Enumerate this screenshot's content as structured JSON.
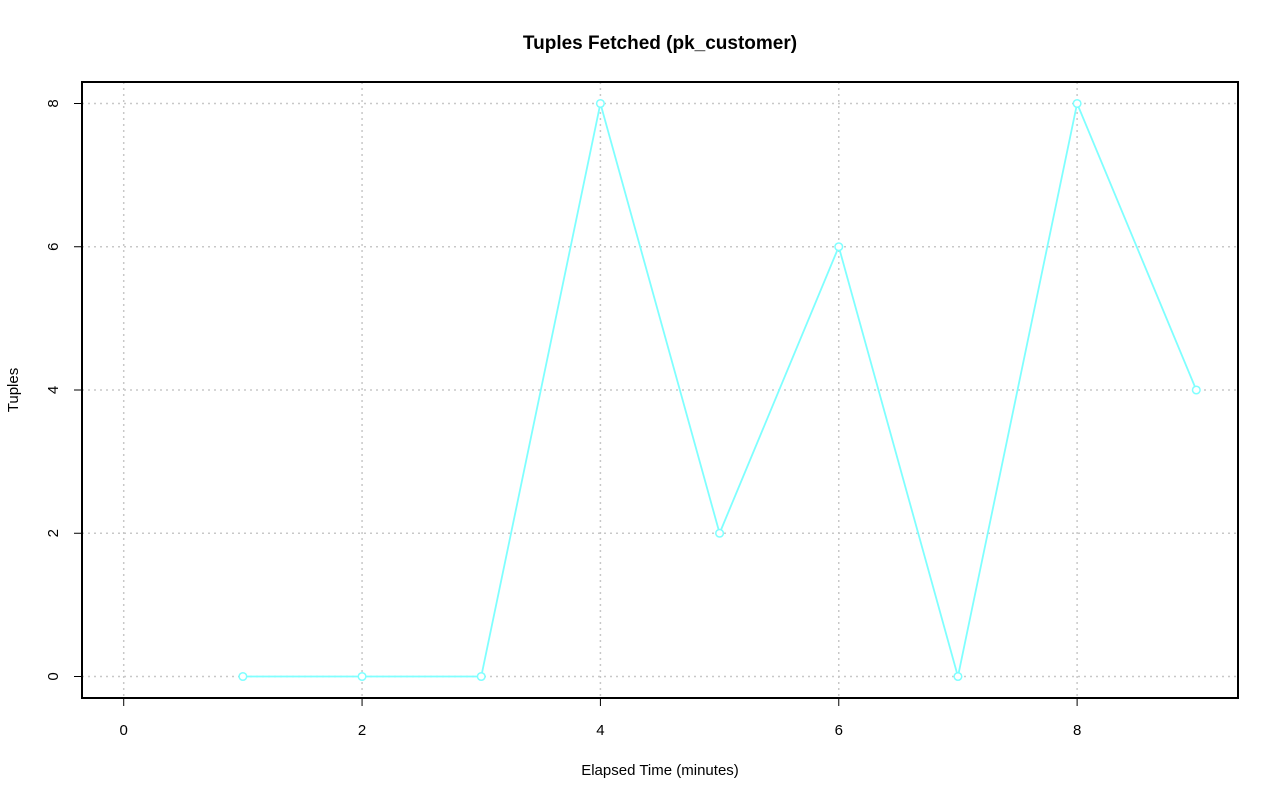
{
  "chart_data": {
    "type": "line",
    "title": "Tuples Fetched (pk_customer)",
    "xlabel": "Elapsed Time (minutes)",
    "ylabel": "Tuples",
    "xlim": [
      -0.35,
      9.35
    ],
    "ylim": [
      -0.3,
      8.3
    ],
    "xticks": [
      0,
      2,
      4,
      6,
      8
    ],
    "yticks": [
      0,
      2,
      4,
      6,
      8
    ],
    "grid": true,
    "series": [
      {
        "color": "#7fffff",
        "marker": "circle",
        "x": [
          1,
          2,
          3,
          4,
          5,
          6,
          7,
          8,
          9
        ],
        "y": [
          0,
          0,
          0,
          8,
          2,
          6,
          0,
          8,
          4
        ]
      }
    ]
  }
}
